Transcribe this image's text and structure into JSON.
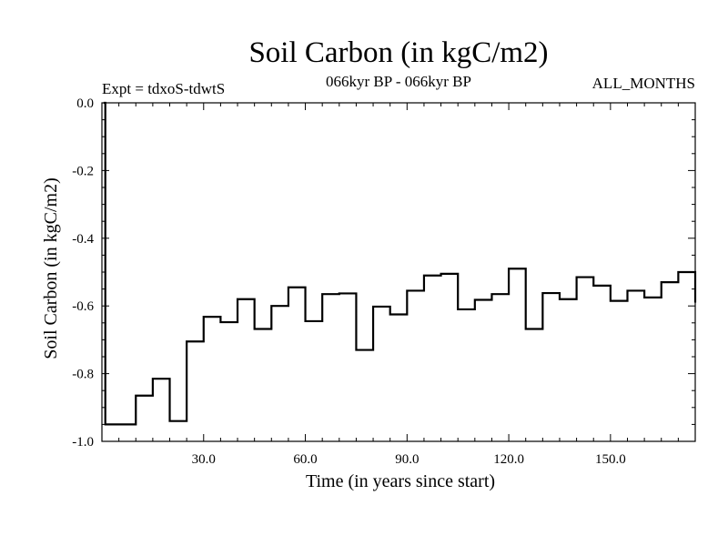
{
  "title": "Soil Carbon (in kgC/m2)",
  "expt_label": "Expt = tdxoS-tdwtS",
  "period_label": "066kyr BP - 066kyr BP",
  "months_label": "ALL_MONTHS",
  "colors": {
    "line": "#000000",
    "axis": "#000000",
    "background": "#ffffff"
  },
  "chart_data": {
    "type": "line",
    "step": true,
    "xlabel": "Time (in years since start)",
    "ylabel": "Soil Carbon (in kgC/m2)",
    "xlim": [
      0,
      175
    ],
    "ylim": [
      -1.0,
      0.0
    ],
    "xticks": [
      30,
      60,
      90,
      120,
      150
    ],
    "xtick_labels": [
      "30.0",
      "60.0",
      "90.0",
      "120.0",
      "150.0"
    ],
    "yticks": [
      0.0,
      -0.2,
      -0.4,
      -0.6,
      -0.8,
      -1.0
    ],
    "ytick_labels": [
      "0.0",
      "-0.2",
      "-0.4",
      "-0.6",
      "-0.8",
      "-1.0"
    ],
    "grid": false,
    "series": [
      {
        "x": [
          0.5,
          1,
          5,
          10,
          15,
          20,
          25,
          30,
          35,
          40,
          45,
          50,
          55,
          60,
          65,
          70,
          75,
          80,
          85,
          90,
          95,
          100,
          105,
          110,
          115,
          120,
          125,
          130,
          135,
          140,
          145,
          150,
          155,
          160,
          165,
          170,
          175
        ],
        "y": [
          0.0,
          -0.95,
          -0.95,
          -0.865,
          -0.815,
          -0.94,
          -0.705,
          -0.632,
          -0.648,
          -0.58,
          -0.668,
          -0.6,
          -0.545,
          -0.645,
          -0.565,
          -0.563,
          -0.73,
          -0.602,
          -0.625,
          -0.555,
          -0.51,
          -0.505,
          -0.61,
          -0.582,
          -0.565,
          -0.49,
          -0.668,
          -0.562,
          -0.58,
          -0.515,
          -0.54,
          -0.585,
          -0.555,
          -0.575,
          -0.53,
          -0.5,
          -0.59
        ]
      }
    ]
  }
}
